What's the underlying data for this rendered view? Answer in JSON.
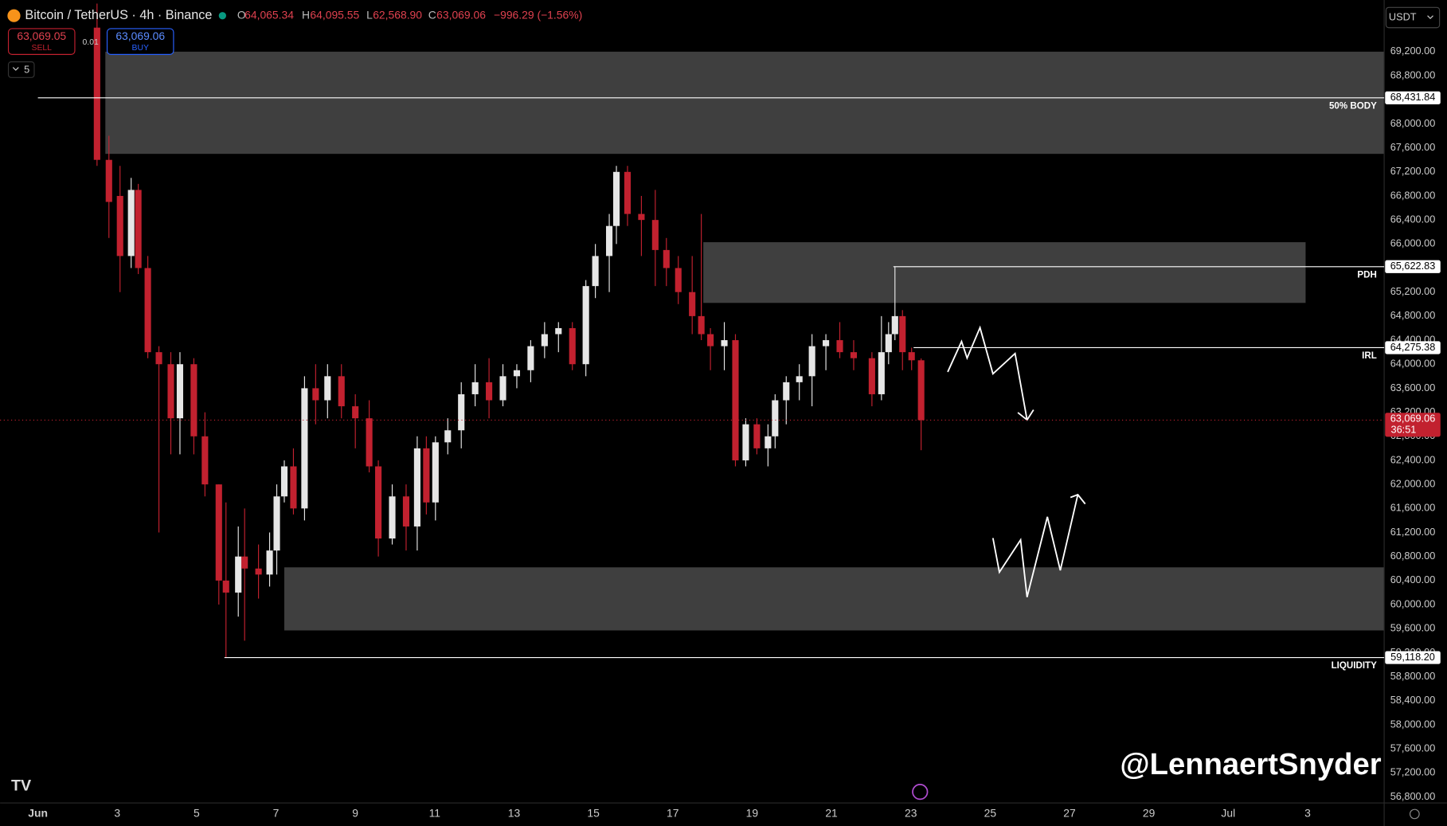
{
  "header": {
    "symbol": "Bitcoin / TetherUS · 4h · Binance",
    "ohlc": [
      {
        "key": "O",
        "value": "64,065.34"
      },
      {
        "key": "H",
        "value": "64,095.55"
      },
      {
        "key": "L",
        "value": "62,568.90"
      },
      {
        "key": "C",
        "value": "63,069.06"
      }
    ],
    "change": "−996.29 (−1.56%)",
    "sell_price": "63,069.05",
    "sell": "SELL",
    "spread": "0.01",
    "buy_price": "63,069.06",
    "buy": "BUY",
    "interval_count": "5",
    "currency": "USDT"
  },
  "watermark": "@LennaertSnyder",
  "chart_data": {
    "type": "candlestick",
    "up_color": "#e6e6e6",
    "down_color": "#c2212f",
    "x": [
      2.49,
      2.79,
      3.07,
      3.35,
      3.53,
      3.77,
      4.05,
      4.35,
      4.58,
      4.93,
      5.21,
      5.56,
      5.74,
      6.05,
      6.21,
      6.56,
      6.84,
      7.02,
      7.21,
      7.44,
      7.72,
      8.0,
      8.3,
      8.65,
      9.0,
      9.35,
      9.58,
      9.93,
      10.28,
      10.56,
      10.79,
      11.02,
      11.33,
      11.67,
      12.02,
      12.37,
      12.72,
      13.07,
      13.42,
      13.77,
      14.12,
      14.47,
      14.81,
      15.05,
      15.4,
      15.58,
      15.86,
      16.21,
      16.56,
      16.84,
      17.14,
      17.49,
      17.72,
      17.95,
      18.3,
      18.58,
      18.84,
      19.12,
      19.4,
      19.58,
      19.86,
      20.19,
      20.51,
      20.86,
      21.21,
      21.56,
      22.02,
      22.26,
      22.44,
      22.6,
      22.79,
      23.02,
      23.26
    ],
    "open": [
      69600,
      67400,
      66800,
      65800,
      66900,
      65600,
      64200,
      64000,
      63100,
      64000,
      62800,
      62000,
      60400,
      60200,
      60800,
      60600,
      60500,
      60900,
      61800,
      62300,
      61600,
      63600,
      63400,
      63800,
      63300,
      63100,
      62300,
      61100,
      61800,
      61300,
      62600,
      61700,
      62700,
      62900,
      63500,
      63700,
      63400,
      63800,
      63900,
      64300,
      64500,
      64600,
      64000,
      65300,
      65800,
      66300,
      67200,
      66500,
      66400,
      65900,
      65600,
      65200,
      64800,
      64500,
      64300,
      64400,
      62400,
      63000,
      62600,
      62800,
      63400,
      63700,
      63800,
      64300,
      64400,
      64200,
      64100,
      63500,
      64200,
      64500,
      64800,
      64200,
      64065.34
    ],
    "high": [
      70000,
      67800,
      67300,
      67100,
      67000,
      65800,
      64300,
      64200,
      64200,
      64100,
      63200,
      62000,
      61700,
      61300,
      61600,
      61000,
      61200,
      62000,
      62400,
      62600,
      63800,
      64000,
      64000,
      64000,
      63500,
      63400,
      62400,
      62000,
      62000,
      62800,
      62800,
      62800,
      63100,
      63700,
      64000,
      64100,
      64000,
      64000,
      64400,
      64700,
      64700,
      64700,
      65400,
      66000,
      66500,
      67300,
      67300,
      66800,
      66900,
      66100,
      65800,
      65800,
      66500,
      64600,
      64700,
      64500,
      63100,
      63100,
      63000,
      63500,
      63800,
      64000,
      64500,
      64500,
      64700,
      64400,
      64200,
      64800,
      64700,
      65622.83,
      64900,
      64275.38,
      64095.55
    ],
    "low": [
      67300,
      66100,
      65200,
      65600,
      65500,
      64100,
      61200,
      62500,
      62500,
      62500,
      61800,
      60000,
      59118.2,
      59800,
      59400,
      60100,
      60300,
      60500,
      61700,
      61500,
      61400,
      63000,
      63100,
      63100,
      62600,
      62200,
      60800,
      61000,
      60900,
      60900,
      61500,
      61400,
      62500,
      62600,
      63300,
      63100,
      63300,
      63600,
      63700,
      64100,
      64200,
      63900,
      63800,
      65100,
      65200,
      66000,
      66300,
      65800,
      65300,
      65300,
      65000,
      64500,
      64400,
      63900,
      63900,
      62300,
      62300,
      62500,
      62300,
      62600,
      63000,
      63400,
      63300,
      63900,
      64100,
      63900,
      63300,
      63400,
      64000,
      64400,
      63900,
      63900,
      62568.9
    ],
    "close": [
      67400,
      66700,
      65800,
      66900,
      65600,
      64200,
      64000,
      63100,
      64000,
      62800,
      62000,
      60400,
      60200,
      60800,
      60600,
      60500,
      60900,
      61800,
      62300,
      61600,
      63600,
      63400,
      63800,
      63300,
      63100,
      62300,
      61100,
      61800,
      61300,
      62600,
      61700,
      62700,
      62900,
      63500,
      63700,
      63400,
      63800,
      63900,
      64300,
      64500,
      64600,
      64000,
      65300,
      65800,
      66300,
      67200,
      66500,
      66400,
      65900,
      65600,
      65200,
      64800,
      64500,
      64300,
      64400,
      62400,
      63000,
      62600,
      62800,
      63400,
      63700,
      63800,
      64300,
      64400,
      64200,
      64100,
      63500,
      64200,
      64500,
      64800,
      64200,
      64065.34,
      63069.06
    ],
    "xlim": [
      0.047,
      34.93
    ],
    "xticks": [
      {
        "value": 1,
        "label": "Jun"
      },
      3,
      5,
      7,
      9,
      11,
      13,
      15,
      17,
      19,
      21,
      23,
      25,
      27,
      29,
      {
        "value": 31,
        "label": "Jul"
      },
      {
        "value": 33,
        "label": "3"
      }
    ],
    "ylim": [
      56700,
      70060
    ],
    "yticks": [
      {
        "value": 56800,
        "label": "56,800.00"
      },
      {
        "value": 57200,
        "label": "57,200.00"
      },
      {
        "value": 57600,
        "label": "57,600.00"
      },
      {
        "value": 58000,
        "label": "58,000.00"
      },
      {
        "value": 58400,
        "label": "58,400.00"
      },
      {
        "value": 58800,
        "label": "58,800.00"
      },
      {
        "value": 59200,
        "label": "59,200.00"
      },
      {
        "value": 59600,
        "label": "59,600.00"
      },
      {
        "value": 60000,
        "label": "60,000.00"
      },
      {
        "value": 60400,
        "label": "60,400.00"
      },
      {
        "value": 60800,
        "label": "60,800.00"
      },
      {
        "value": 61200,
        "label": "61,200.00"
      },
      {
        "value": 61600,
        "label": "61,600.00"
      },
      {
        "value": 62000,
        "label": "62,000.00"
      },
      {
        "value": 62400,
        "label": "62,400.00"
      },
      {
        "value": 62800,
        "label": "62,800.00"
      },
      {
        "value": 63200,
        "label": "63,200.00"
      },
      {
        "value": 63600,
        "label": "63,600.00"
      },
      {
        "value": 64000,
        "label": "64,000.00"
      },
      {
        "value": 64400,
        "label": "64,400.00"
      },
      {
        "value": 64800,
        "label": "64,800.00"
      },
      {
        "value": 65200,
        "label": "65,200.00"
      },
      {
        "value": 65600,
        "label": "65,600.00"
      },
      {
        "value": 66000,
        "label": "66,000.00"
      },
      {
        "value": 66400,
        "label": "66,400.00"
      },
      {
        "value": 66800,
        "label": "66,800.00"
      },
      {
        "value": 67200,
        "label": "67,200.00"
      },
      {
        "value": 67600,
        "label": "67,600.00"
      },
      {
        "value": 68000,
        "label": "68,000.00"
      },
      {
        "value": 68400,
        "label": "68,400.00"
      },
      {
        "value": 68800,
        "label": "68,800.00"
      },
      {
        "value": 69200,
        "label": "69,200.00"
      }
    ],
    "zones": [
      {
        "x": [
          2.7,
          34.93
        ],
        "y": [
          67500,
          69200
        ]
      },
      {
        "x": [
          17.77,
          32.95
        ],
        "y": [
          65020,
          66030
        ]
      },
      {
        "x": [
          7.21,
          34.93
        ],
        "y": [
          59570,
          60620
        ]
      }
    ],
    "levels": [
      {
        "name": "50% BODY",
        "value": 68431.84,
        "label": "68,431.84",
        "start": 1
      },
      {
        "name": "PDH",
        "value": 65622.83,
        "label": "65,622.83",
        "start": 22.56
      },
      {
        "name": "IRL",
        "value": 64275.38,
        "label": "64,275.38",
        "start": 23.07
      },
      {
        "name": "LIQUIDITY",
        "value": 59118.2,
        "label": "59,118.20",
        "start": 5.7
      }
    ],
    "current": {
      "value": 63069.06,
      "label": "63,069.06",
      "countdown": "36:51"
    }
  }
}
